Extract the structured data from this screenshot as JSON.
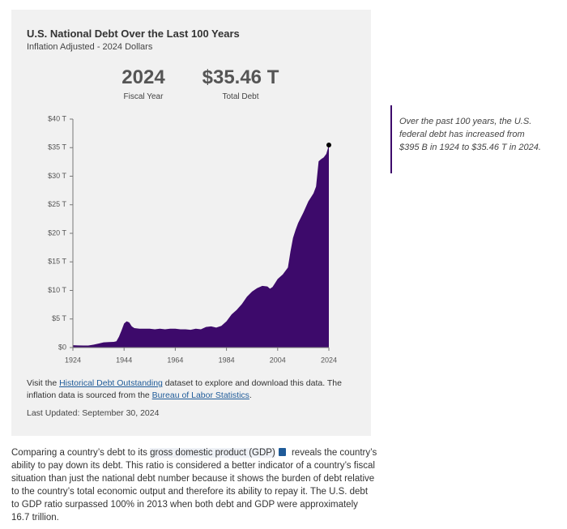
{
  "chart_data": {
    "type": "area",
    "title": "U.S. National Debt Over the Last 100 Years",
    "subtitle": "Inflation Adjusted - 2024 Dollars",
    "stats": [
      {
        "value": "2024",
        "label": "Fiscal Year"
      },
      {
        "value": "$35.46 T",
        "label": "Total Debt"
      }
    ],
    "x": [
      1924,
      1926,
      1928,
      1930,
      1932,
      1934,
      1936,
      1938,
      1940,
      1941,
      1942,
      1943,
      1944,
      1945,
      1946,
      1947,
      1948,
      1950,
      1952,
      1954,
      1956,
      1958,
      1960,
      1962,
      1964,
      1966,
      1968,
      1970,
      1972,
      1974,
      1976,
      1978,
      1980,
      1982,
      1984,
      1986,
      1988,
      1990,
      1992,
      1994,
      1996,
      1998,
      2000,
      2001,
      2002,
      2003,
      2004,
      2006,
      2008,
      2009,
      2010,
      2011,
      2012,
      2014,
      2016,
      2018,
      2019,
      2020,
      2021,
      2022,
      2023,
      2024
    ],
    "values": [
      0.4,
      0.38,
      0.36,
      0.35,
      0.5,
      0.7,
      0.9,
      0.95,
      1.0,
      1.1,
      1.9,
      3.0,
      4.2,
      4.6,
      4.4,
      3.7,
      3.4,
      3.3,
      3.3,
      3.3,
      3.2,
      3.3,
      3.2,
      3.3,
      3.3,
      3.2,
      3.2,
      3.1,
      3.3,
      3.2,
      3.6,
      3.7,
      3.5,
      3.8,
      4.6,
      5.8,
      6.6,
      7.6,
      8.9,
      9.8,
      10.4,
      10.8,
      10.7,
      10.3,
      10.6,
      11.3,
      12.0,
      12.8,
      14.0,
      16.8,
      19.2,
      20.6,
      21.8,
      23.6,
      25.6,
      27.0,
      28.2,
      32.6,
      33.0,
      33.3,
      33.9,
      35.46
    ],
    "color": "#3d0a6b",
    "xlim": [
      1924,
      2024
    ],
    "xticks": [
      1924,
      1944,
      1964,
      1984,
      2004,
      2024
    ],
    "ylim": [
      0,
      40
    ],
    "yticks": [
      {
        "value": 0,
        "label": "$0"
      },
      {
        "value": 5,
        "label": "$5 T"
      },
      {
        "value": 10,
        "label": "$10 T"
      },
      {
        "value": 15,
        "label": "$15 T"
      },
      {
        "value": 20,
        "label": "$20 T"
      },
      {
        "value": 25,
        "label": "$25 T"
      },
      {
        "value": 30,
        "label": "$30 T"
      },
      {
        "value": 35,
        "label": "$35 T"
      },
      {
        "value": 40,
        "label": "$40 T"
      }
    ],
    "grid": false,
    "annotation": "Over the past 100 years, the U.S. federal debt has increased from $395 B in 1924 to $35.46 T in 2024."
  },
  "footnote": {
    "parts": [
      "Visit the ",
      "Historical Debt Outstanding",
      " dataset to explore and download this data. The inflation data is sourced from the ",
      "Bureau of Labor Statistics",
      "."
    ],
    "updated": "Last Updated: September 30, 2024"
  },
  "paragraph": {
    "before": "Comparing a country’s debt to its ",
    "term": "gross domestic product (GDP)",
    "after": " reveals the country’s ability to pay down its debt. This ratio is considered a better indicator of a country’s fiscal situation than just the national debt number because it shows the burden of debt relative to the country’s total economic output and therefore its ability to repay it. The U.S. debt to GDP ratio surpassed 100% in 2013 when both debt and GDP were approximately 16.7 trillion."
  }
}
